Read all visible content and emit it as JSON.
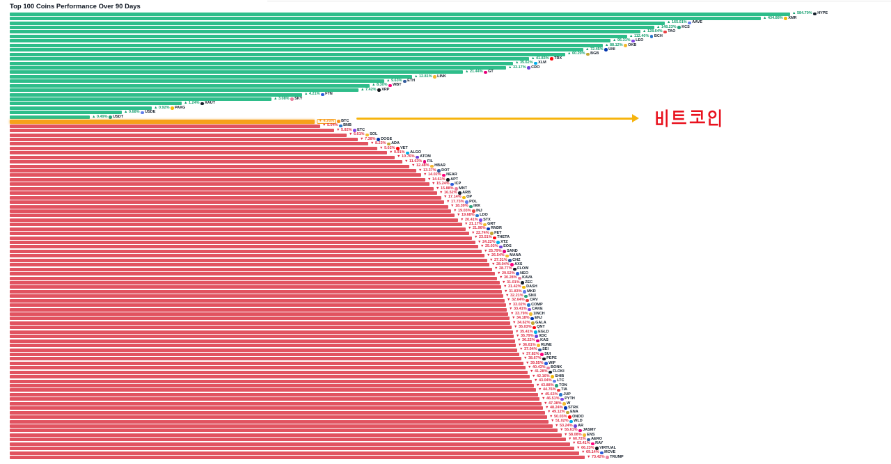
{
  "title": "Top 100 Coins Performance Over 90 Days",
  "annotation": {
    "text": "비트코인",
    "meaning": "Bitcoin",
    "arrow_color": "#f6b40e",
    "text_color": "#e8111d",
    "points_to_symbol": "BTC"
  },
  "colors": {
    "positive_bar": "#2ebd8a",
    "negative_bar": "#e15360",
    "highlight_bar": "#f7a11a",
    "positive_label": "#149e6e",
    "negative_label": "#e02d45",
    "ticker_text": "#16202c",
    "background": "#ffffff"
  },
  "chart_data": {
    "type": "bar",
    "orientation": "horizontal",
    "title": "Top 100 Coins Performance Over 90 Days",
    "unit": "%",
    "period": "90 days",
    "sort": "descending by change",
    "axes_hidden": true,
    "legend": "none",
    "scale_note": "bar length encodes log of absolute % change",
    "highlighted_symbol": "BTC",
    "coins": [
      {
        "symbol": "HYPE",
        "change_pct": 584.7
      },
      {
        "symbol": "XMR",
        "change_pct": 434.88
      },
      {
        "symbol": "AAVE",
        "change_pct": 165.01
      },
      {
        "symbol": "KCS",
        "change_pct": 148.23
      },
      {
        "symbol": "TAO",
        "change_pct": 128.64
      },
      {
        "symbol": "BCH",
        "change_pct": 112.4
      },
      {
        "symbol": "LEO",
        "change_pct": 95.31
      },
      {
        "symbol": "OKB",
        "change_pct": 88.12
      },
      {
        "symbol": "UNI",
        "change_pct": 72.45
      },
      {
        "symbol": "BGB",
        "change_pct": 60.2
      },
      {
        "symbol": "TRX",
        "change_pct": 41.83
      },
      {
        "symbol": "XLM",
        "change_pct": 35.62
      },
      {
        "symbol": "CRO",
        "change_pct": 33.17
      },
      {
        "symbol": "GT",
        "change_pct": 21.44
      },
      {
        "symbol": "LINK",
        "change_pct": 12.81
      },
      {
        "symbol": "ETH",
        "change_pct": 9.63
      },
      {
        "symbol": "WBT",
        "change_pct": 8.3
      },
      {
        "symbol": "XRP",
        "change_pct": 7.42
      },
      {
        "symbol": "FTN",
        "change_pct": 4.21
      },
      {
        "symbol": "SKY",
        "change_pct": 3.08
      },
      {
        "symbol": "XAUT",
        "change_pct": 1.24
      },
      {
        "symbol": "PAXG",
        "change_pct": 0.92
      },
      {
        "symbol": "USDE",
        "change_pct": 0.68
      },
      {
        "symbol": "USDT",
        "change_pct": 0.49
      },
      {
        "symbol": "BTC",
        "change_pct": -4.76,
        "highlight": true
      },
      {
        "symbol": "BNB",
        "change_pct": -5.04
      },
      {
        "symbol": "ETC",
        "change_pct": -5.82
      },
      {
        "symbol": "SOL",
        "change_pct": -6.61
      },
      {
        "symbol": "DOGE",
        "change_pct": -7.38
      },
      {
        "symbol": "ADA",
        "change_pct": -8.23
      },
      {
        "symbol": "VET",
        "change_pct": -9.02
      },
      {
        "symbol": "ALGO",
        "change_pct": -9.91
      },
      {
        "symbol": "ATOM",
        "change_pct": -10.76
      },
      {
        "symbol": "FIL",
        "change_pct": -11.63
      },
      {
        "symbol": "HBAR",
        "change_pct": -12.48
      },
      {
        "symbol": "DOT",
        "change_pct": -13.37
      },
      {
        "symbol": "NEAR",
        "change_pct": -14.02
      },
      {
        "symbol": "APT",
        "change_pct": -14.61
      },
      {
        "symbol": "ICP",
        "change_pct": -15.24
      },
      {
        "symbol": "MNT",
        "change_pct": -15.88
      },
      {
        "symbol": "ARB",
        "change_pct": -16.52
      },
      {
        "symbol": "OP",
        "change_pct": -17.14
      },
      {
        "symbol": "POL",
        "change_pct": -17.73
      },
      {
        "symbol": "IMX",
        "change_pct": -18.39
      },
      {
        "symbol": "INJ",
        "change_pct": -19.03
      },
      {
        "symbol": "LDO",
        "change_pct": -19.68
      },
      {
        "symbol": "STX",
        "change_pct": -20.41
      },
      {
        "symbol": "GRT",
        "change_pct": -21.17
      },
      {
        "symbol": "RNDR",
        "change_pct": -21.96
      },
      {
        "symbol": "FET",
        "change_pct": -22.74
      },
      {
        "symbol": "THETA",
        "change_pct": -23.51
      },
      {
        "symbol": "XTZ",
        "change_pct": -24.22
      },
      {
        "symbol": "EOS",
        "change_pct": -25.03
      },
      {
        "symbol": "SAND",
        "change_pct": -25.79
      },
      {
        "symbol": "MANA",
        "change_pct": -26.54
      },
      {
        "symbol": "CHZ",
        "change_pct": -27.31
      },
      {
        "symbol": "AXS",
        "change_pct": -28.04
      },
      {
        "symbol": "FLOW",
        "change_pct": -28.77
      },
      {
        "symbol": "NEO",
        "change_pct": -29.52
      },
      {
        "symbol": "KAVA",
        "change_pct": -30.28
      },
      {
        "symbol": "ZEC",
        "change_pct": -31.01
      },
      {
        "symbol": "DASH",
        "change_pct": -31.42
      },
      {
        "symbol": "MKR",
        "change_pct": -31.83
      },
      {
        "symbol": "SNX",
        "change_pct": -32.21
      },
      {
        "symbol": "CRV",
        "change_pct": -32.64
      },
      {
        "symbol": "COMP",
        "change_pct": -33.02
      },
      {
        "symbol": "CAKE",
        "change_pct": -33.41
      },
      {
        "symbol": "1INCH",
        "change_pct": -33.79
      },
      {
        "symbol": "ENJ",
        "change_pct": -34.18
      },
      {
        "symbol": "GALA",
        "change_pct": -34.62
      },
      {
        "symbol": "QNT",
        "change_pct": -35.03
      },
      {
        "symbol": "EGLD",
        "change_pct": -35.41
      },
      {
        "symbol": "XDC",
        "change_pct": -35.79
      },
      {
        "symbol": "KAS",
        "change_pct": -36.22
      },
      {
        "symbol": "RUNE",
        "change_pct": -36.61
      },
      {
        "symbol": "SEI",
        "change_pct": -37.04
      },
      {
        "symbol": "SUI",
        "change_pct": -37.82
      },
      {
        "symbol": "PEPE",
        "change_pct": -38.67
      },
      {
        "symbol": "WIF",
        "change_pct": -39.55
      },
      {
        "symbol": "BONK",
        "change_pct": -40.43
      },
      {
        "symbol": "FLOKI",
        "change_pct": -41.28
      },
      {
        "symbol": "SHIB",
        "change_pct": -42.16
      },
      {
        "symbol": "LTC",
        "change_pct": -43.04
      },
      {
        "symbol": "TON",
        "change_pct": -43.88
      },
      {
        "symbol": "TIA",
        "change_pct": -44.76
      },
      {
        "symbol": "JUP",
        "change_pct": -45.63
      },
      {
        "symbol": "PYTH",
        "change_pct": -46.51
      },
      {
        "symbol": "W",
        "change_pct": -47.38
      },
      {
        "symbol": "STRK",
        "change_pct": -48.24
      },
      {
        "symbol": "ENA",
        "change_pct": -49.12
      },
      {
        "symbol": "ONDO",
        "change_pct": -50.03
      },
      {
        "symbol": "WLD",
        "change_pct": -51.02
      },
      {
        "symbol": "AR",
        "change_pct": -53.24
      },
      {
        "symbol": "JASMY",
        "change_pct": -55.61
      },
      {
        "symbol": "ENS",
        "change_pct": -58.08
      },
      {
        "symbol": "AERO",
        "change_pct": -60.72
      },
      {
        "symbol": "RAY",
        "change_pct": -63.41
      },
      {
        "symbol": "VIRTUAL",
        "change_pct": -66.23
      },
      {
        "symbol": "MOVE",
        "change_pct": -69.14
      },
      {
        "symbol": "TRUMP",
        "change_pct": -73.42
      }
    ]
  }
}
